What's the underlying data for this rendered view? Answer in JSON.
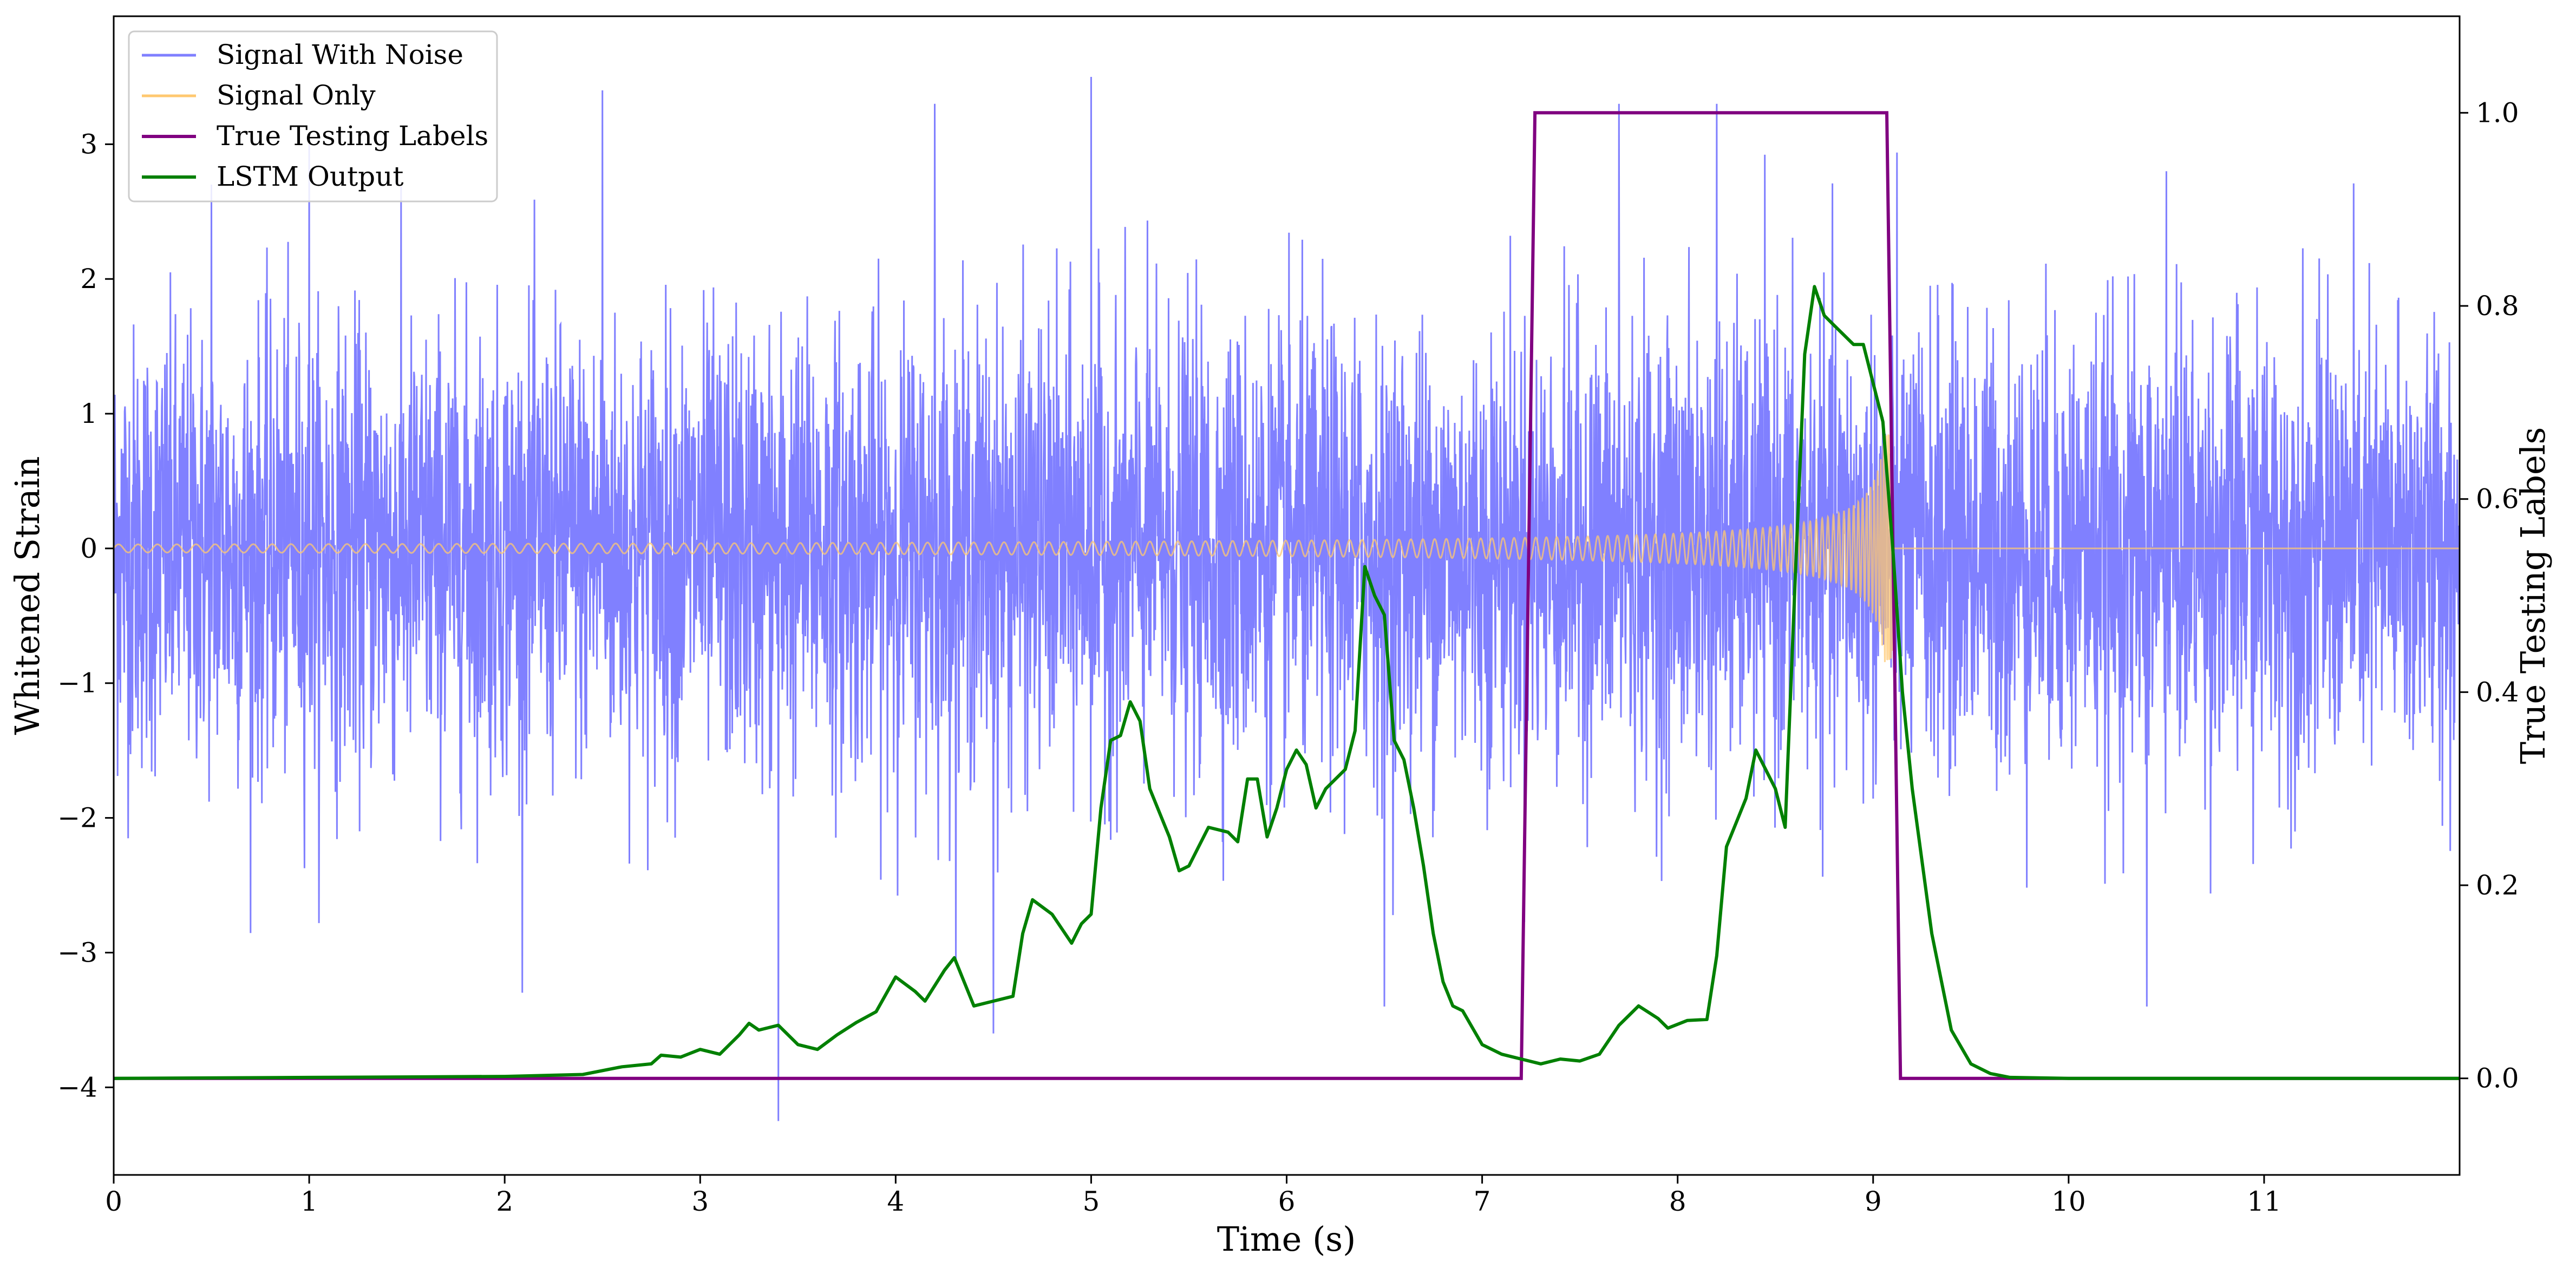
{
  "chart_data": {
    "type": "line",
    "xlabel": "Time (s)",
    "ylabel": "Whitened Strain",
    "y2label": "True Testing Labels",
    "xlim": [
      0,
      12
    ],
    "ylim": [
      -4.65,
      3.95
    ],
    "y2lim": [
      -0.1,
      1.1
    ],
    "xticks": [
      "0",
      "1",
      "2",
      "3",
      "4",
      "5",
      "6",
      "7",
      "8",
      "9",
      "10",
      "11"
    ],
    "yticks": [
      "−4",
      "−3",
      "−2",
      "−1",
      "0",
      "1",
      "2",
      "3"
    ],
    "y2ticks": [
      "0.0",
      "0.2",
      "0.4",
      "0.6",
      "0.8",
      "1.0"
    ],
    "grid": false,
    "legend_position": "top-left",
    "colors": {
      "noise": "#8080ff",
      "signal": "#ffc870",
      "labels": "#800080",
      "lstm": "#008000"
    },
    "series": [
      {
        "name": "Signal With Noise",
        "axis": "left",
        "description_only": true,
        "spread": 1.0,
        "peaks": [
          [
            0.5,
            2.7
          ],
          [
            1.0,
            3.0
          ],
          [
            2.5,
            3.4
          ],
          [
            3.4,
            3.5
          ],
          [
            4.2,
            3.3
          ],
          [
            5.0,
            3.5
          ],
          [
            7.7,
            3.3
          ],
          [
            8.2,
            3.3
          ],
          [
            10.5,
            2.8
          ]
        ],
        "troughs": [
          [
            3.4,
            -4.25
          ],
          [
            4.5,
            -3.6
          ],
          [
            6.5,
            -3.4
          ],
          [
            10.4,
            -3.4
          ]
        ]
      },
      {
        "name": "Signal Only",
        "axis": "left",
        "chirp": {
          "start": 0.0,
          "end": 9.1,
          "amp_start": 0.03,
          "amp_end": 0.85
        }
      },
      {
        "name": "True Testing Labels",
        "axis": "right",
        "x": [
          0,
          7.2,
          7.27,
          9.07,
          9.14,
          12
        ],
        "y": [
          0,
          0,
          1,
          1,
          0,
          0
        ]
      },
      {
        "name": "LSTM Output",
        "axis": "right",
        "x": [
          0,
          1.0,
          2.0,
          2.4,
          2.6,
          2.75,
          2.8,
          2.9,
          3.0,
          3.1,
          3.2,
          3.25,
          3.3,
          3.4,
          3.5,
          3.6,
          3.7,
          3.8,
          3.9,
          4.0,
          4.1,
          4.15,
          4.25,
          4.3,
          4.4,
          4.5,
          4.6,
          4.65,
          4.7,
          4.8,
          4.9,
          4.95,
          5.0,
          5.05,
          5.1,
          5.15,
          5.2,
          5.25,
          5.3,
          5.35,
          5.4,
          5.45,
          5.5,
          5.55,
          5.6,
          5.7,
          5.75,
          5.8,
          5.85,
          5.9,
          5.95,
          6.0,
          6.05,
          6.1,
          6.15,
          6.2,
          6.3,
          6.35,
          6.4,
          6.45,
          6.5,
          6.55,
          6.6,
          6.65,
          6.7,
          6.75,
          6.8,
          6.85,
          6.9,
          7.0,
          7.1,
          7.2,
          7.3,
          7.4,
          7.5,
          7.6,
          7.7,
          7.75,
          7.8,
          7.9,
          7.95,
          8.05,
          8.15,
          8.2,
          8.25,
          8.3,
          8.35,
          8.4,
          8.45,
          8.5,
          8.55,
          8.6,
          8.65,
          8.7,
          8.75,
          8.8,
          8.9,
          8.95,
          9.0,
          9.05,
          9.1,
          9.15,
          9.2,
          9.3,
          9.4,
          9.5,
          9.6,
          9.7,
          10,
          12
        ],
        "y": [
          0,
          0.001,
          0.002,
          0.004,
          0.012,
          0.015,
          0.024,
          0.022,
          0.03,
          0.025,
          0.045,
          0.057,
          0.05,
          0.055,
          0.035,
          0.03,
          0.045,
          0.058,
          0.069,
          0.105,
          0.09,
          0.08,
          0.112,
          0.125,
          0.075,
          0.08,
          0.085,
          0.15,
          0.185,
          0.17,
          0.14,
          0.16,
          0.17,
          0.28,
          0.35,
          0.355,
          0.39,
          0.37,
          0.3,
          0.275,
          0.25,
          0.215,
          0.22,
          0.24,
          0.26,
          0.255,
          0.245,
          0.31,
          0.31,
          0.25,
          0.28,
          0.32,
          0.34,
          0.325,
          0.28,
          0.3,
          0.32,
          0.36,
          0.53,
          0.5,
          0.48,
          0.35,
          0.33,
          0.28,
          0.22,
          0.15,
          0.1,
          0.075,
          0.07,
          0.035,
          0.025,
          0.02,
          0.015,
          0.02,
          0.018,
          0.025,
          0.055,
          0.065,
          0.075,
          0.062,
          0.052,
          0.06,
          0.061,
          0.127,
          0.24,
          0.265,
          0.29,
          0.34,
          0.32,
          0.3,
          0.26,
          0.51,
          0.75,
          0.82,
          0.79,
          0.78,
          0.76,
          0.76,
          0.72,
          0.68,
          0.55,
          0.4,
          0.3,
          0.15,
          0.05,
          0.015,
          0.005,
          0.001,
          0,
          0
        ]
      }
    ]
  }
}
